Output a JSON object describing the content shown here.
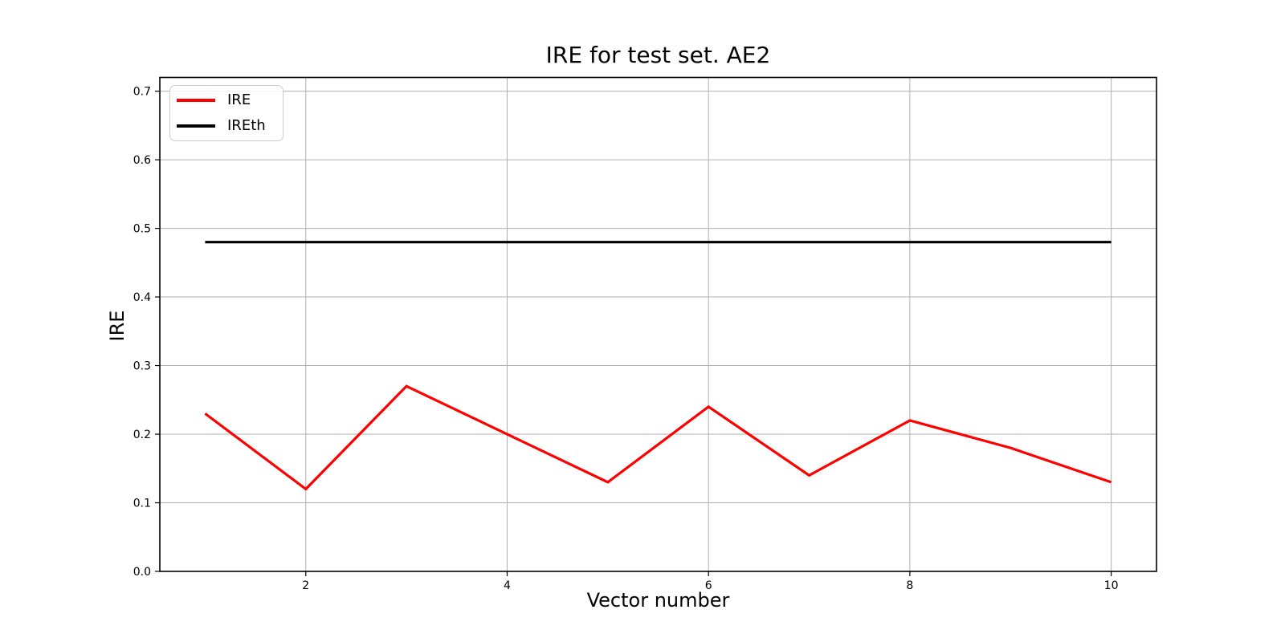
{
  "figure": {
    "background": "#ffffff"
  },
  "chart": {
    "title": "IRE for test set. AE2",
    "xlabel": "Vector number",
    "ylabel": "IRE",
    "legend": [
      {
        "label": "IRE",
        "color": "#ff0000"
      },
      {
        "label": "IREth",
        "color": "#000000"
      }
    ],
    "colors": {
      "grid": "#b0b0b0",
      "axis": "#000000",
      "background": "#ffffff"
    }
  },
  "chart_data": {
    "type": "line",
    "x": [
      1,
      2,
      3,
      4,
      5,
      6,
      7,
      8,
      9,
      10
    ],
    "series": [
      {
        "name": "IRE",
        "color": "#ff0000",
        "values": [
          0.23,
          0.12,
          0.27,
          0.2,
          0.13,
          0.24,
          0.14,
          0.22,
          0.18,
          0.13
        ]
      },
      {
        "name": "IREth",
        "color": "#000000",
        "values": [
          0.48,
          0.48,
          0.48,
          0.48,
          0.48,
          0.48,
          0.48,
          0.48,
          0.48,
          0.48
        ]
      }
    ],
    "title": "IRE for test set. AE2",
    "xlabel": "Vector number",
    "ylabel": "IRE",
    "xlim": [
      0.55,
      10.45
    ],
    "ylim": [
      0,
      0.72
    ],
    "xticks": [
      2,
      4,
      6,
      8,
      10
    ],
    "yticks": [
      0.0,
      0.1,
      0.2,
      0.3,
      0.4,
      0.5,
      0.6,
      0.7
    ],
    "x_tick_labels": [
      "2",
      "4",
      "6",
      "8",
      "10"
    ],
    "y_tick_labels": [
      "0.0",
      "0.1",
      "0.2",
      "0.3",
      "0.4",
      "0.5",
      "0.6",
      "0.7"
    ],
    "grid": true,
    "legend_position": "upper left"
  }
}
